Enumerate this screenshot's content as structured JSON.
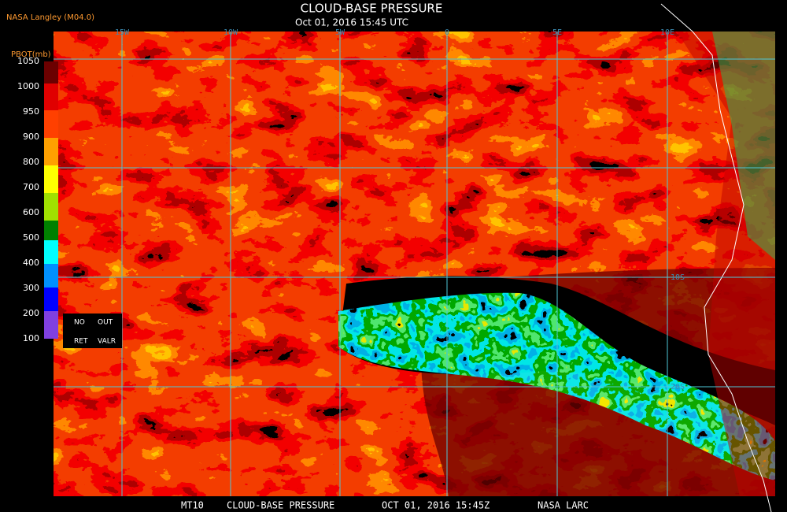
{
  "header": {
    "source": "NASA Langley (M04.0)",
    "title": "CLOUD-BASE PRESSURE",
    "timestamp": "Oct 01, 2016 15:45 UTC"
  },
  "legend": {
    "title": "PBOT(mb)",
    "labels": [
      1050,
      1000,
      950,
      900,
      800,
      700,
      600,
      500,
      400,
      300,
      200,
      100
    ],
    "no_retrieval": [
      "NO",
      "RET"
    ],
    "out_of_range": [
      "OUT",
      "VALR"
    ]
  },
  "map": {
    "longitude_labels": [
      "15W",
      "10W",
      "5W",
      "0",
      "5E",
      "10E"
    ],
    "latitude_labels": [
      "10S",
      "20S"
    ]
  },
  "footer": [
    "MT10",
    "CLOUD-BASE PRESSURE",
    "OCT 01, 2016 15:45Z",
    "NASA LARC"
  ]
}
